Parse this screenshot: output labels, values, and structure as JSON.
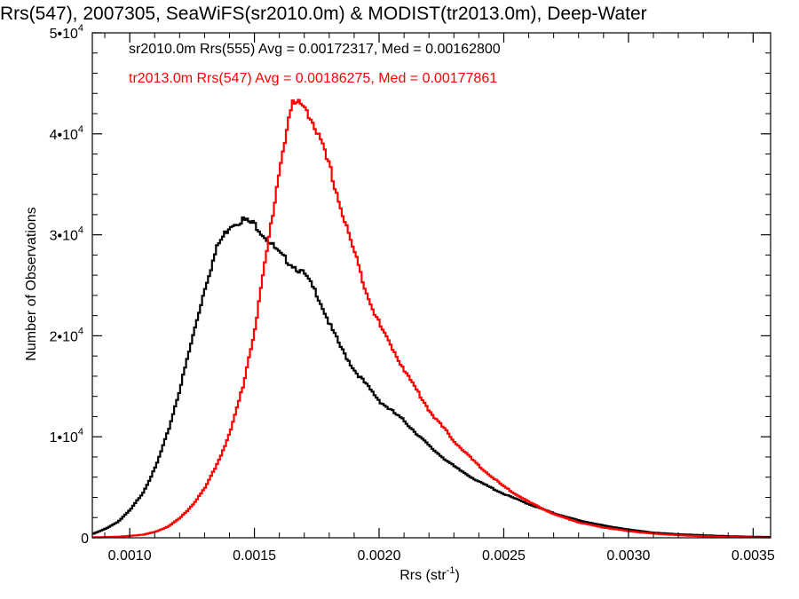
{
  "chart_data": {
    "type": "line",
    "title": "Rrs(547), 2007305, SeaWiFS(sr2010.0m) & MODIST(tr2013.0m), Deep-Water",
    "xlabel": "Rrs (str",
    "xlabel_sup": "-1",
    "xlabel_close": ")",
    "ylabel": "Number of Observations",
    "xlim": [
      0.00085,
      0.00357
    ],
    "ylim": [
      0,
      50000
    ],
    "x_ticks": [
      {
        "value": 0.001,
        "label": "0.0010"
      },
      {
        "value": 0.0015,
        "label": "0.0015"
      },
      {
        "value": 0.002,
        "label": "0.0020"
      },
      {
        "value": 0.0025,
        "label": "0.0025"
      },
      {
        "value": 0.003,
        "label": "0.0030"
      },
      {
        "value": 0.0035,
        "label": "0.0035"
      }
    ],
    "y_ticks": [
      {
        "value": 0,
        "label": "0"
      },
      {
        "value": 10000,
        "label": "1•10",
        "sup": "4"
      },
      {
        "value": 20000,
        "label": "2•10",
        "sup": "4"
      },
      {
        "value": 30000,
        "label": "3•10",
        "sup": "4"
      },
      {
        "value": 40000,
        "label": "4•10",
        "sup": "4"
      },
      {
        "value": 50000,
        "label": "5•10",
        "sup": "4"
      }
    ],
    "annotations": [
      "sr2010.0m Rrs(555) Avg = 0.00172317, Med = 0.00162800",
      "tr2013.0m Rrs(547) Avg = 0.00186275, Med = 0.00177861"
    ],
    "series": [
      {
        "color": "#000000",
        "x": [
          0.00085,
          0.0009,
          0.00095,
          0.001,
          0.00105,
          0.0011,
          0.00115,
          0.0012,
          0.00125,
          0.0013,
          0.00135,
          0.0014,
          0.00145,
          0.0015,
          0.00155,
          0.0016,
          0.00165,
          0.0017,
          0.00175,
          0.0018,
          0.00185,
          0.0019,
          0.00195,
          0.002,
          0.0021,
          0.0022,
          0.0023,
          0.0024,
          0.0025,
          0.0026,
          0.0027,
          0.0028,
          0.0029,
          0.003,
          0.0031,
          0.0032,
          0.0033,
          0.0034,
          0.0035,
          0.00357
        ],
        "y": [
          400,
          900,
          1600,
          2800,
          4500,
          7000,
          10500,
          15000,
          20000,
          25000,
          29000,
          31000,
          31500,
          31000,
          29500,
          28000,
          27000,
          26000,
          24000,
          21000,
          18500,
          16500,
          15000,
          13500,
          11500,
          9000,
          7000,
          5500,
          4300,
          3300,
          2400,
          1700,
          1200,
          800,
          500,
          350,
          250,
          150,
          100,
          80
        ]
      },
      {
        "color": "#ff0000",
        "x": [
          0.00085,
          0.00095,
          0.00105,
          0.0011,
          0.00115,
          0.0012,
          0.00125,
          0.0013,
          0.00135,
          0.0014,
          0.00145,
          0.0015,
          0.00155,
          0.0016,
          0.00163,
          0.00165,
          0.0017,
          0.00175,
          0.0018,
          0.00185,
          0.0019,
          0.00195,
          0.002,
          0.0021,
          0.0022,
          0.0023,
          0.0024,
          0.0025,
          0.0026,
          0.0027,
          0.0028,
          0.0029,
          0.003,
          0.0031,
          0.0032,
          0.0033,
          0.0034,
          0.0035,
          0.00357
        ],
        "y": [
          50,
          100,
          300,
          600,
          1100,
          2000,
          3300,
          5000,
          7500,
          10500,
          15000,
          21000,
          29000,
          37000,
          41000,
          43000,
          42800,
          40000,
          36500,
          32000,
          28000,
          24000,
          21000,
          16500,
          12500,
          9500,
          7000,
          5000,
          3500,
          2300,
          1500,
          1000,
          650,
          400,
          250,
          150,
          80,
          40,
          20
        ]
      }
    ]
  }
}
